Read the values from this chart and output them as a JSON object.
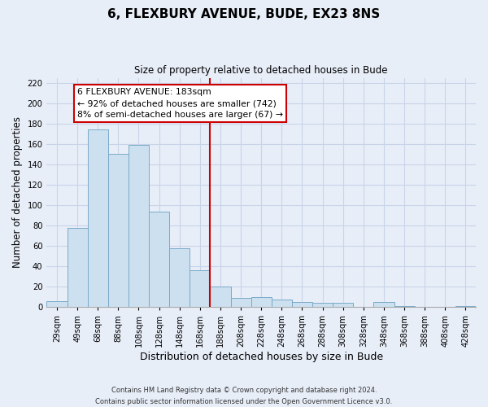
{
  "title": "6, FLEXBURY AVENUE, BUDE, EX23 8NS",
  "subtitle": "Size of property relative to detached houses in Bude",
  "xlabel": "Distribution of detached houses by size in Bude",
  "ylabel": "Number of detached properties",
  "bar_labels": [
    "29sqm",
    "49sqm",
    "68sqm",
    "88sqm",
    "108sqm",
    "128sqm",
    "148sqm",
    "168sqm",
    "188sqm",
    "208sqm",
    "228sqm",
    "248sqm",
    "268sqm",
    "288sqm",
    "308sqm",
    "328sqm",
    "348sqm",
    "368sqm",
    "388sqm",
    "408sqm",
    "428sqm"
  ],
  "bar_values": [
    6,
    78,
    174,
    150,
    159,
    94,
    58,
    36,
    20,
    9,
    10,
    7,
    5,
    4,
    4,
    0,
    5,
    1,
    0,
    0,
    1
  ],
  "bar_color": "#cde0ef",
  "bar_edge_color": "#7baac8",
  "vline_color": "#cc0000",
  "vline_index": 8,
  "annotation_title": "6 FLEXBURY AVENUE: 183sqm",
  "annotation_line1": "← 92% of detached houses are smaller (742)",
  "annotation_line2": "8% of semi-detached houses are larger (67) →",
  "ylim": [
    0,
    225
  ],
  "yticks": [
    0,
    20,
    40,
    60,
    80,
    100,
    120,
    140,
    160,
    180,
    200,
    220
  ],
  "footnote1": "Contains HM Land Registry data © Crown copyright and database right 2024.",
  "footnote2": "Contains public sector information licensed under the Open Government Licence v3.0.",
  "bg_color": "#e8eef8",
  "grid_color": "#c8d4e8"
}
